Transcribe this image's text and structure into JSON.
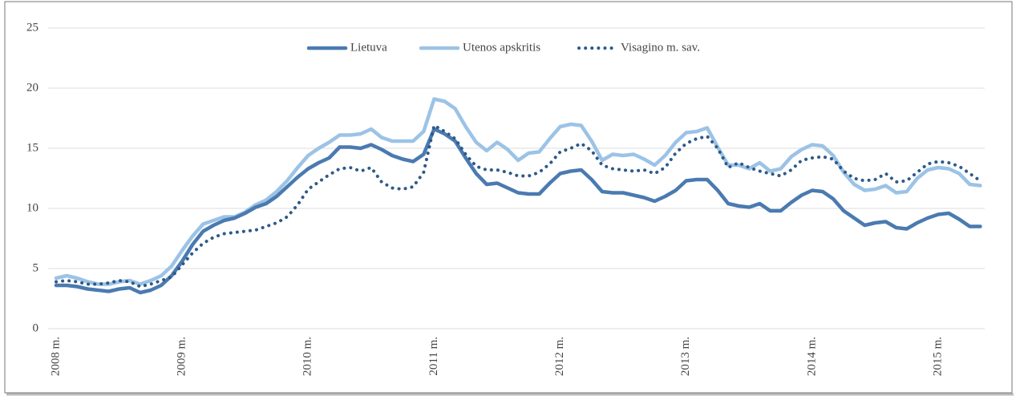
{
  "chart_data": {
    "type": "line",
    "categories": [
      "2008 m.",
      null,
      null,
      null,
      null,
      null,
      null,
      null,
      null,
      null,
      null,
      null,
      "2009 m.",
      null,
      null,
      null,
      null,
      null,
      null,
      null,
      null,
      null,
      null,
      null,
      "2010 m.",
      null,
      null,
      null,
      null,
      null,
      null,
      null,
      null,
      null,
      null,
      null,
      "2011 m.",
      null,
      null,
      null,
      null,
      null,
      null,
      null,
      null,
      null,
      null,
      null,
      "2012 m.",
      null,
      null,
      null,
      null,
      null,
      null,
      null,
      null,
      null,
      null,
      null,
      "2013 m.",
      null,
      null,
      null,
      null,
      null,
      null,
      null,
      null,
      null,
      null,
      null,
      "2014 m.",
      null,
      null,
      null,
      null,
      null,
      null,
      null,
      null,
      null,
      null,
      null,
      "2015 m.",
      null,
      null,
      null,
      null
    ],
    "series": [
      {
        "name": "Lietuva",
        "color": "#4a7ab0",
        "dash": false,
        "values": [
          3.6,
          3.6,
          3.5,
          3.3,
          3.2,
          3.1,
          3.3,
          3.4,
          3.0,
          3.2,
          3.6,
          4.4,
          5.6,
          7.0,
          8.1,
          8.6,
          9.0,
          9.2,
          9.6,
          10.1,
          10.4,
          11.0,
          11.8,
          12.6,
          13.3,
          13.8,
          14.2,
          15.1,
          15.1,
          15.0,
          15.3,
          14.9,
          14.4,
          14.1,
          13.9,
          14.5,
          16.6,
          16.2,
          15.6,
          14.2,
          12.9,
          12.0,
          12.1,
          11.7,
          11.3,
          11.2,
          11.2,
          12.1,
          12.9,
          13.1,
          13.2,
          12.4,
          11.4,
          11.3,
          11.3,
          11.1,
          10.9,
          10.6,
          11.0,
          11.5,
          12.3,
          12.4,
          12.4,
          11.5,
          10.4,
          10.2,
          10.1,
          10.4,
          9.8,
          9.8,
          10.5,
          11.1,
          11.5,
          11.4,
          10.8,
          9.8,
          9.2,
          8.6,
          8.8,
          8.9,
          8.4,
          8.3,
          8.8,
          9.2,
          9.5,
          9.6,
          9.1,
          8.5,
          8.5
        ]
      },
      {
        "name": "Utenos apskritis",
        "color": "#9cc3e6",
        "dash": false,
        "values": [
          4.2,
          4.4,
          4.2,
          3.9,
          3.7,
          3.7,
          3.9,
          4.0,
          3.7,
          4.0,
          4.4,
          5.2,
          6.5,
          7.7,
          8.7,
          9.0,
          9.3,
          9.3,
          9.7,
          10.3,
          10.7,
          11.4,
          12.3,
          13.4,
          14.4,
          15.0,
          15.5,
          16.1,
          16.1,
          16.2,
          16.6,
          15.9,
          15.6,
          15.6,
          15.6,
          16.4,
          19.1,
          18.9,
          18.3,
          16.8,
          15.5,
          14.8,
          15.5,
          14.9,
          14.0,
          14.6,
          14.7,
          15.8,
          16.8,
          17.0,
          16.9,
          15.6,
          14.0,
          14.5,
          14.4,
          14.5,
          14.1,
          13.6,
          14.4,
          15.5,
          16.3,
          16.4,
          16.7,
          15.1,
          13.6,
          13.6,
          13.3,
          13.8,
          13.1,
          13.3,
          14.3,
          14.9,
          15.3,
          15.2,
          14.4,
          13.0,
          12.0,
          11.5,
          11.6,
          11.9,
          11.3,
          11.4,
          12.5,
          13.2,
          13.4,
          13.3,
          12.9,
          12.0,
          11.9
        ]
      },
      {
        "name": "Visagino m. sav.",
        "color": "#2e5a8a",
        "dash": true,
        "values": [
          3.9,
          4.0,
          3.9,
          3.7,
          3.7,
          3.8,
          4.0,
          3.9,
          3.5,
          3.7,
          4.0,
          4.3,
          5.3,
          6.3,
          7.1,
          7.6,
          7.9,
          8.0,
          8.1,
          8.2,
          8.5,
          8.8,
          9.3,
          10.3,
          11.6,
          12.2,
          12.8,
          13.3,
          13.4,
          13.1,
          13.4,
          12.2,
          11.7,
          11.6,
          11.8,
          13.0,
          16.9,
          16.4,
          15.8,
          14.5,
          13.5,
          13.2,
          13.2,
          13.0,
          12.7,
          12.7,
          13.0,
          13.7,
          14.7,
          15.0,
          15.4,
          14.8,
          13.6,
          13.3,
          13.2,
          13.1,
          13.2,
          12.9,
          13.4,
          14.6,
          15.4,
          15.8,
          16.0,
          15.0,
          13.4,
          13.8,
          13.4,
          13.1,
          12.9,
          12.7,
          13.2,
          14.0,
          14.2,
          14.3,
          14.1,
          13.1,
          12.5,
          12.3,
          12.4,
          12.9,
          12.2,
          12.3,
          13.0,
          13.7,
          13.9,
          13.8,
          13.5,
          12.9,
          12.3
        ]
      }
    ],
    "ylim": [
      0,
      25
    ],
    "yticks": [
      0,
      5,
      10,
      15,
      20,
      25
    ],
    "grid": true,
    "legend": "top"
  }
}
